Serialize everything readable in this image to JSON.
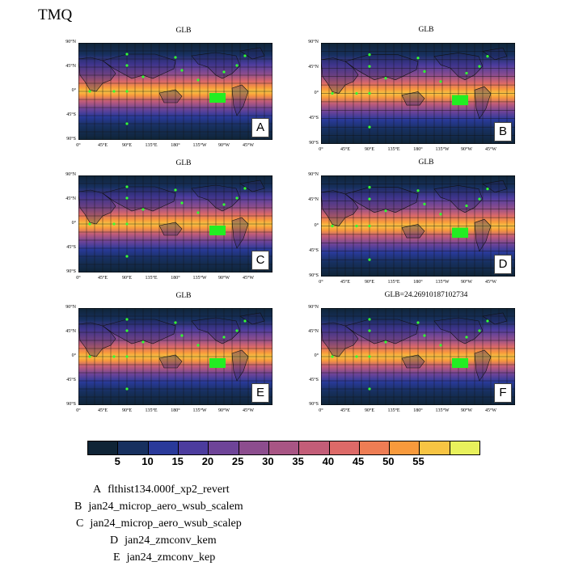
{
  "main_title": "TMQ",
  "panels": [
    {
      "letter": "A",
      "title": "GLB"
    },
    {
      "letter": "B",
      "title": "GLB"
    },
    {
      "letter": "C",
      "title": "GLB"
    },
    {
      "letter": "D",
      "title": "GLB"
    },
    {
      "letter": "E",
      "title": "GLB"
    },
    {
      "letter": "F",
      "title": "GLB=24.26910187102734"
    }
  ],
  "lat_labels": [
    "90°N",
    "45°N",
    "0°",
    "45°S",
    "90°S"
  ],
  "lon_labels": [
    "0°",
    "45°E",
    "90°E",
    "135°E",
    "180°",
    "135°W",
    "90°W",
    "45°W"
  ],
  "colorbar": {
    "colors": [
      "#0f2436",
      "#17305f",
      "#2a3a9a",
      "#4c3c9e",
      "#6e4498",
      "#8c4d8e",
      "#a85584",
      "#c35d78",
      "#dd6a68",
      "#ee7d54",
      "#f89a3c",
      "#f7c443",
      "#e8f15c"
    ],
    "labels": [
      "5",
      "10",
      "15",
      "20",
      "25",
      "30",
      "35",
      "40",
      "45",
      "50",
      "55"
    ]
  },
  "legend": [
    {
      "letter": "A",
      "text": "flthist134.000f_xp2_revert"
    },
    {
      "letter": "B",
      "text": "jan24_microp_aero_wsub_scalem"
    },
    {
      "letter": "C",
      "text": "jan24_microp_aero_wsub_scalep"
    },
    {
      "letter": "D",
      "text": "jan24_zmconv_kem"
    },
    {
      "letter": "E",
      "text": "jan24_zmconv_kep"
    }
  ]
}
